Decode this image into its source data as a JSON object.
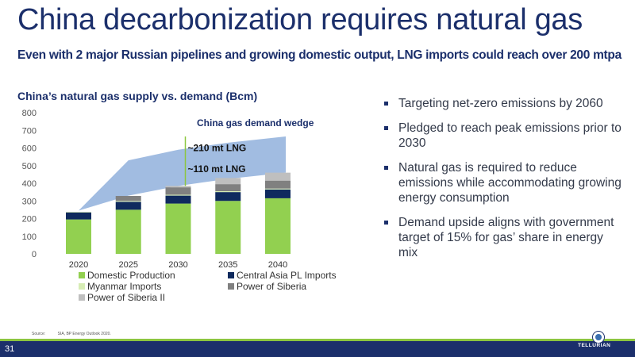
{
  "page": {
    "title": "China decarbonization requires natural gas",
    "subtitle": "Even with 2 major Russian pipelines and growing domestic output, LNG imports could reach over 200 mtpa",
    "chart_heading": "China’s natural gas supply vs. demand (Bcm)",
    "bullets": [
      "Targeting net-zero emissions by 2060",
      "Pledged to reach peak emissions prior to 2030",
      "Natural gas is required to reduce emissions while accommodating growing energy consumption",
      "Demand upside aligns with government target of 15% for gas’ share in energy mix"
    ],
    "source_label": "Source:",
    "source_text": "SIA, BP Energy Outlook 2020.",
    "page_number": "31",
    "logo_text": "TELLURIAN",
    "colors": {
      "navy": "#1b2f6b",
      "green": "#8cc63f"
    }
  },
  "chart_data": {
    "type": "bar",
    "stacked": true,
    "title": "China’s natural gas supply vs. demand (Bcm)",
    "categories": [
      "2020",
      "2025",
      "2030",
      "2035",
      "2040"
    ],
    "ylim": [
      0,
      800
    ],
    "yticks": [
      0,
      100,
      200,
      300,
      400,
      500,
      600,
      700,
      800
    ],
    "grid": false,
    "legend_position": "bottom-left",
    "series": [
      {
        "name": "Domestic Production",
        "color": "#92d050",
        "values": [
          195,
          250,
          285,
          300,
          315
        ]
      },
      {
        "name": "Central Asia PL Imports",
        "color": "#0f2a5e",
        "values": [
          40,
          45,
          45,
          50,
          50
        ]
      },
      {
        "name": "Myanmar Imports",
        "color": "#d7edb5",
        "values": [
          3,
          5,
          5,
          5,
          5
        ]
      },
      {
        "name": "Power of Siberia",
        "color": "#808080",
        "values": [
          0,
          28,
          42,
          40,
          45
        ]
      },
      {
        "name": "Power of Siberia II",
        "color": "#bfbfbf",
        "values": [
          0,
          0,
          8,
          35,
          45
        ]
      }
    ],
    "demand_wedge": {
      "label": "China gas demand wedge",
      "color": "#9cb8df",
      "x": [
        "2020",
        "2025",
        "2030",
        "2035",
        "2040"
      ],
      "lower": [
        245,
        330,
        385,
        425,
        460
      ],
      "upper": [
        245,
        530,
        590,
        630,
        665
      ]
    },
    "annotations": [
      {
        "text": "~210 mt LNG",
        "x": "2030",
        "y": 600
      },
      {
        "text": "~110 mt LNG",
        "x": "2030",
        "y": 480
      }
    ],
    "marker_line": {
      "x": "2030",
      "from": 385,
      "to": 665,
      "color": "#8cc63f"
    }
  }
}
